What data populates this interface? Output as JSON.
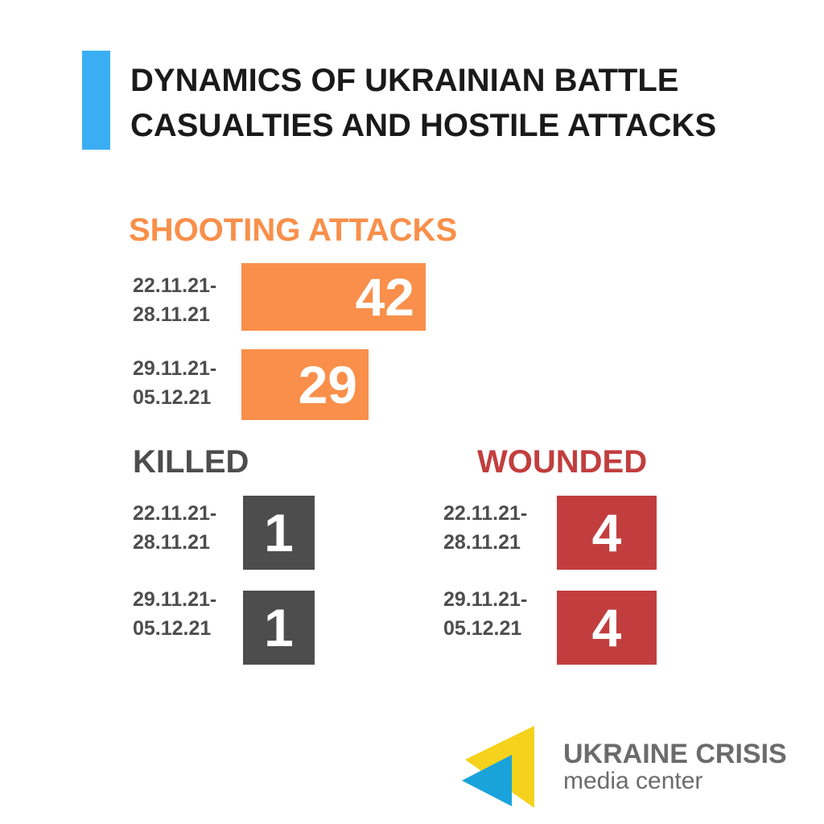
{
  "title_lines": [
    "DYNAMICS OF UKRAINIAN BATTLE",
    "CASUALTIES AND HOSTILE ATTACKS"
  ],
  "colors": {
    "accent": "#3aaef2",
    "shooting": "#f98f4a",
    "killed": "#4d4d4d",
    "wounded": "#c23e3e",
    "text_dark": "#1a1a1a",
    "logo_yellow": "#f5d21c",
    "logo_blue": "#1aa3db"
  },
  "chart_data": [
    {
      "type": "bar",
      "title": "SHOOTING  ATTACKS",
      "categories": [
        [
          "22.11.21-",
          "28.11.21"
        ],
        [
          "29.11.21-",
          "05.12.21"
        ]
      ],
      "values": [
        42,
        29
      ]
    },
    {
      "type": "table",
      "title": "KILLED",
      "categories": [
        [
          "22.11.21-",
          "28.11.21"
        ],
        [
          "29.11.21-",
          "05.12.21"
        ]
      ],
      "values": [
        1,
        1
      ]
    },
    {
      "type": "table",
      "title": "WOUNDED",
      "categories": [
        [
          "22.11.21-",
          "28.11.21"
        ],
        [
          "29.11.21-",
          "05.12.21"
        ]
      ],
      "values": [
        4,
        4
      ]
    }
  ],
  "logo": {
    "name": "UKRAINE CRISIS",
    "sub": "media center",
    "icon": "ukraine-crisis-logo-mark"
  }
}
